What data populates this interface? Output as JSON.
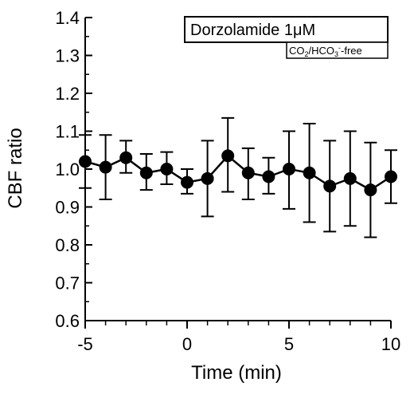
{
  "chart_data": {
    "type": "line",
    "xlabel": "Time (min)",
    "ylabel": "CBF ratio",
    "xlim": [
      -5,
      10
    ],
    "ylim": [
      0.6,
      1.4
    ],
    "xticks": [
      "-5",
      "0",
      "5",
      "10"
    ],
    "yticks": [
      "0.6",
      "0.7",
      "0.8",
      "0.9",
      "1.0",
      "1.1",
      "1.2",
      "1.3",
      "1.4"
    ],
    "grid": false,
    "legend": {
      "placement": "top-right",
      "title": "Dorzolamide 1μM",
      "subtitle": "CO2/HCO3-free"
    },
    "series": [
      {
        "x": [
          -5,
          -4,
          -3,
          -2,
          -1,
          0,
          1,
          2,
          3,
          4,
          5,
          6,
          7,
          8,
          9,
          10
        ],
        "y": [
          1.02,
          1.005,
          1.03,
          0.99,
          1.0,
          0.965,
          0.975,
          1.035,
          0.99,
          0.98,
          1.0,
          0.99,
          0.955,
          0.975,
          0.945,
          0.98
        ],
        "err_upper": [
          1.09,
          1.09,
          1.075,
          1.04,
          1.045,
          1.0,
          1.075,
          1.135,
          1.055,
          1.03,
          1.1,
          1.12,
          1.075,
          1.1,
          1.07,
          1.05
        ],
        "err_lower": [
          0.95,
          0.92,
          0.99,
          0.945,
          0.96,
          0.935,
          0.875,
          0.94,
          0.92,
          0.935,
          0.895,
          0.86,
          0.835,
          0.85,
          0.82,
          0.91
        ],
        "color": "#000000"
      }
    ]
  }
}
